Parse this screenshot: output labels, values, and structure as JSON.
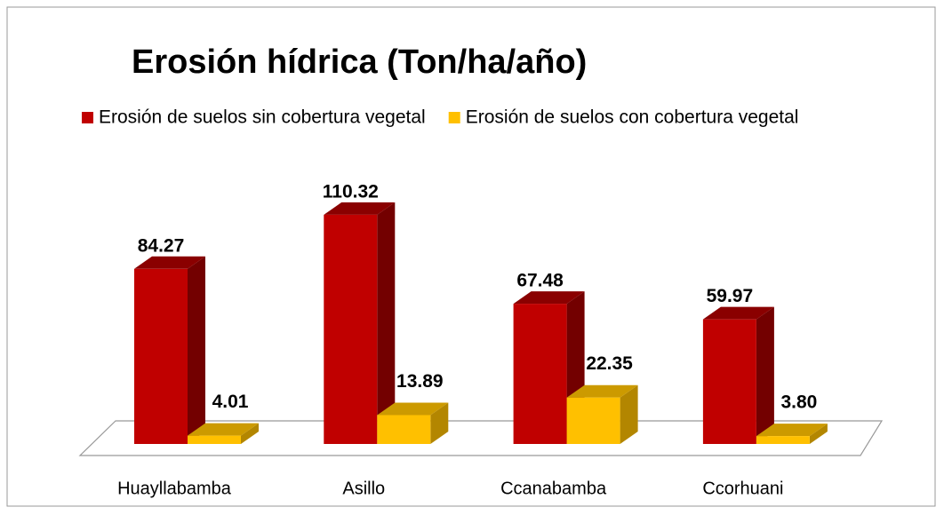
{
  "chart_data": {
    "type": "bar3d",
    "title": "Erosión  hídrica (Ton/ha/año)",
    "categories": [
      "Huayllabamba",
      "Asillo",
      "Ccanabamba",
      "Ccorhuani"
    ],
    "series": [
      {
        "name": "Erosión de suelos sin cobertura vegetal",
        "color": "#c00000",
        "values": [
          84.27,
          110.32,
          67.48,
          59.97
        ],
        "value_labels": [
          "84.27",
          "110.32",
          "67.48",
          "59.97"
        ]
      },
      {
        "name": "Erosión de suelos con cobertura vegetal",
        "color": "#ffc000",
        "values": [
          4.01,
          13.89,
          22.35,
          3.8
        ],
        "value_labels": [
          "4.01",
          "13.89",
          "22.35",
          "3.80"
        ]
      }
    ],
    "legend": "top"
  }
}
